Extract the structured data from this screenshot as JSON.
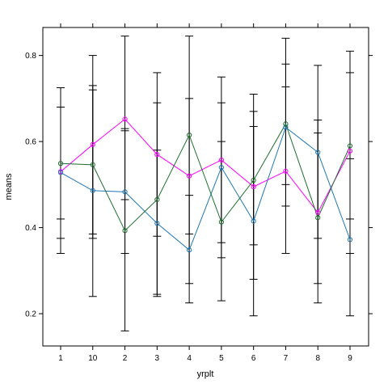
{
  "chart_data": {
    "type": "line",
    "xlabel": "yrplt",
    "ylabel": "means",
    "categories": [
      "1",
      "10",
      "2",
      "3",
      "4",
      "5",
      "6",
      "7",
      "8",
      "9"
    ],
    "yticks": [
      0.2,
      0.4,
      0.6,
      0.8
    ],
    "ylim": [
      0.125,
      0.865
    ],
    "grid": false,
    "error_bar_cap": true,
    "series": [
      {
        "color": "#ff00ff",
        "marker": "circle-open",
        "values": [
          0.53,
          0.593,
          0.652,
          0.57,
          0.52,
          0.557,
          0.495,
          0.531,
          0.435,
          0.578
        ],
        "lower": [
          0.375,
          0.385,
          0.465,
          0.38,
          0.385,
          0.365,
          0.28,
          0.34,
          0.375,
          0.42
        ],
        "upper": [
          0.68,
          0.72,
          0.845,
          0.76,
          0.7,
          0.75,
          0.71,
          0.727,
          0.65,
          0.81
        ]
      },
      {
        "color": "#1f77b4",
        "marker": "circle-open",
        "values": [
          0.528,
          0.486,
          0.483,
          0.41,
          0.348,
          0.54,
          0.415,
          0.633,
          0.575,
          0.372
        ],
        "lower": [
          0.34,
          0.24,
          0.34,
          0.24,
          0.225,
          0.23,
          0.195,
          0.45,
          0.27,
          0.195
        ],
        "upper": [
          0.725,
          0.73,
          0.63,
          0.58,
          0.475,
          0.6,
          0.635,
          0.84,
          0.777,
          0.56
        ]
      },
      {
        "color": "#1f6f2f",
        "marker": "circle-open",
        "values": [
          0.549,
          0.546,
          0.393,
          0.465,
          0.615,
          0.413,
          0.51,
          0.641,
          0.423,
          0.59
        ],
        "lower": [
          0.42,
          0.375,
          0.16,
          0.245,
          0.27,
          0.33,
          0.36,
          0.5,
          0.225,
          0.34
        ],
        "upper": [
          0.68,
          0.8,
          0.625,
          0.69,
          0.845,
          0.69,
          0.67,
          0.78,
          0.62,
          0.76
        ]
      }
    ]
  }
}
